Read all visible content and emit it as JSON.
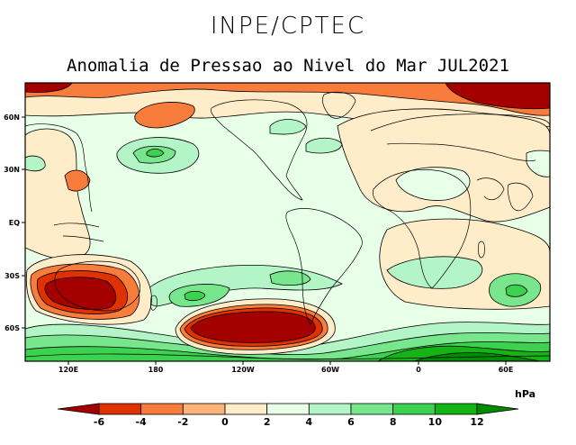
{
  "header": {
    "org": "INPE/CPTEC",
    "subtitle": "Anomalia de Pressao ao Nivel do Mar JUL2021"
  },
  "map": {
    "projection": "cylindrical equidistant",
    "lat_ticks": [
      "60N",
      "30N",
      "EQ",
      "30S",
      "60S"
    ],
    "lon_ticks": [
      "120E",
      "180",
      "120W",
      "60W",
      "0",
      "60E"
    ]
  },
  "colorbar": {
    "unit": "hPa",
    "ticks": [
      "-6",
      "-4",
      "-2",
      "0",
      "2",
      "4",
      "6",
      "8",
      "10",
      "12"
    ],
    "colors": [
      "#a50000",
      "#e03200",
      "#f87d3c",
      "#ffb47a",
      "#ffecc8",
      "#e8ffe8",
      "#b4f5c8",
      "#78e68c",
      "#3cd250",
      "#14b414",
      "#008c00"
    ]
  },
  "anomaly_features": [
    {
      "name": "negative-anomaly-south-pacific",
      "value": -6
    },
    {
      "name": "negative-anomaly-west-australia",
      "value": -6
    },
    {
      "name": "negative-anomaly-arctic-east",
      "value": -6
    },
    {
      "name": "positive-anomaly-antarctica",
      "value": 12
    }
  ]
}
